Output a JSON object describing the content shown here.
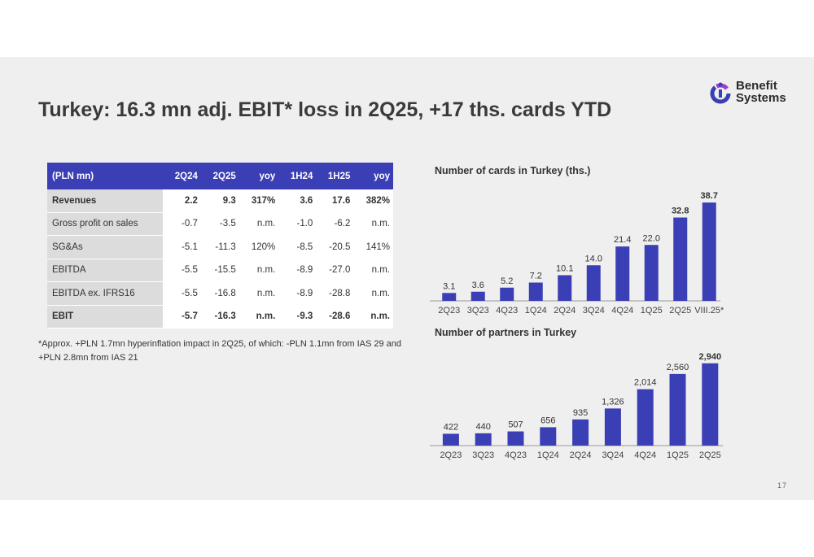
{
  "title": "Turkey: 16.3 mn adj. EBIT* loss in 2Q25, +17 ths. cards YTD",
  "logo": {
    "line1": "Benefit",
    "line2": "Systems"
  },
  "table": {
    "headers": [
      "(PLN mn)",
      "2Q24",
      "2Q25",
      "yoy",
      "1H24",
      "1H25",
      "yoy"
    ],
    "rows": [
      [
        "Revenues",
        "2.2",
        "9.3",
        "317%",
        "3.6",
        "17.6",
        "382%"
      ],
      [
        "Gross profit on sales",
        "-0.7",
        "-3.5",
        "n.m.",
        "-1.0",
        "-6.2",
        "n.m."
      ],
      [
        "SG&As",
        "-5.1",
        "-11.3",
        "120%",
        "-8.5",
        "-20.5",
        "141%"
      ],
      [
        "EBITDA",
        "-5.5",
        "-15.5",
        "n.m.",
        "-8.9",
        "-27.0",
        "n.m."
      ],
      [
        "EBITDA ex. IFRS16",
        "-5.5",
        "-16.8",
        "n.m.",
        "-8.9",
        "-28.8",
        "n.m."
      ],
      [
        "EBIT",
        "-5.7",
        "-16.3",
        "n.m.",
        "-9.3",
        "-28.6",
        "n.m."
      ]
    ]
  },
  "footnote": "*Approx. +PLN 1.7mn hyperinflation impact in 2Q25, of which: -PLN 1.1mn from IAS 29 and +PLN 2.8mn from IAS 21",
  "page_number": "17",
  "colors": {
    "accent": "#3a3fb5",
    "background": "#efefef",
    "title": "#3a3a3a"
  },
  "chart_data": [
    {
      "type": "bar",
      "title": "Number of cards in Turkey (ths.)",
      "categories": [
        "2Q23",
        "3Q23",
        "4Q23",
        "1Q24",
        "2Q24",
        "3Q24",
        "4Q24",
        "1Q25",
        "2Q25",
        "VIII.25*"
      ],
      "values": [
        3.1,
        3.6,
        5.2,
        7.2,
        10.1,
        14.0,
        21.4,
        22.0,
        32.8,
        38.7
      ],
      "labels": [
        "3.1",
        "3.6",
        "5.2",
        "7.2",
        "10.1",
        "14.0",
        "21.4",
        "22.0",
        "32.8",
        "38.7"
      ],
      "bold_labels": [
        8,
        9
      ],
      "ylim": [
        0,
        40
      ]
    },
    {
      "type": "bar",
      "title": "Number of partners in Turkey",
      "categories": [
        "2Q23",
        "3Q23",
        "4Q23",
        "1Q24",
        "2Q24",
        "3Q24",
        "4Q24",
        "1Q25",
        "2Q25"
      ],
      "values": [
        422,
        440,
        507,
        656,
        935,
        1326,
        2014,
        2560,
        2940
      ],
      "labels": [
        "422",
        "440",
        "507",
        "656",
        "935",
        "1,326",
        "2,014",
        "2,560",
        "2,940"
      ],
      "bold_labels": [
        8
      ],
      "ylim": [
        0,
        3050
      ]
    }
  ]
}
